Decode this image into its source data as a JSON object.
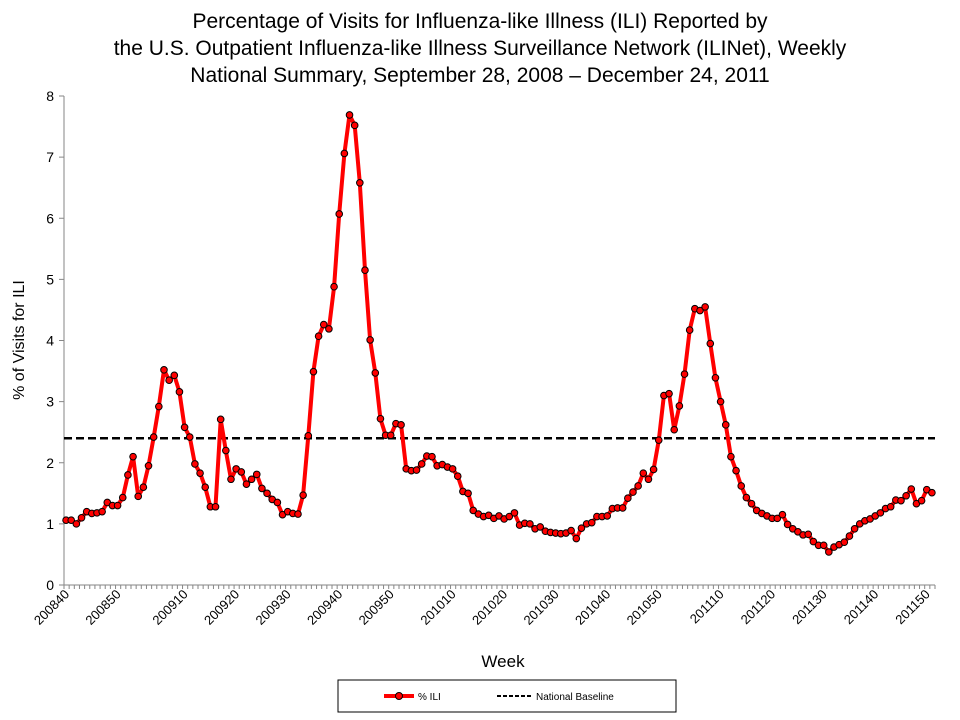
{
  "chart_data": {
    "type": "line",
    "title_lines": [
      "Percentage of Visits for Influenza-like Illness (ILI) Reported by",
      "the U.S. Outpatient Influenza-like Illness Surveillance Network (ILINet), Weekly",
      "National Summary, September 28, 2008 – December 24, 2011"
    ],
    "xlabel": "Week",
    "ylabel": "% of Visits for ILI",
    "ylim": [
      0,
      8
    ],
    "yticks": [
      0,
      1,
      2,
      3,
      4,
      5,
      6,
      7,
      8
    ],
    "grid": false,
    "legend_position": "bottom",
    "x_tick_labels": [
      "200840",
      "200850",
      "200910",
      "200920",
      "200930",
      "200940",
      "200950",
      "201010",
      "201020",
      "201030",
      "201040",
      "201050",
      "201110",
      "201120",
      "201130",
      "201140",
      "201150"
    ],
    "series": [
      {
        "name": "% ILI",
        "color": "#ff0000",
        "marker": "circle",
        "values": [
          1.06,
          1.06,
          1.0,
          1.1,
          1.2,
          1.17,
          1.18,
          1.2,
          1.35,
          1.3,
          1.3,
          1.43,
          1.8,
          2.1,
          1.45,
          1.6,
          1.95,
          2.42,
          2.92,
          3.52,
          3.35,
          3.43,
          3.16,
          2.58,
          2.42,
          1.98,
          1.83,
          1.6,
          1.28,
          1.28,
          2.71,
          2.2,
          1.73,
          1.9,
          1.85,
          1.65,
          1.73,
          1.81,
          1.58,
          1.5,
          1.4,
          1.35,
          1.15,
          1.2,
          1.17,
          1.16,
          1.47,
          2.44,
          3.49,
          4.07,
          4.26,
          4.19,
          4.88,
          6.07,
          7.06,
          7.69,
          7.52,
          6.58,
          5.15,
          4.01,
          3.47,
          2.72,
          2.45,
          2.45,
          2.64,
          2.62,
          1.9,
          1.87,
          1.88,
          1.98,
          2.11,
          2.1,
          1.95,
          1.97,
          1.93,
          1.9,
          1.78,
          1.53,
          1.5,
          1.22,
          1.16,
          1.12,
          1.14,
          1.09,
          1.13,
          1.08,
          1.12,
          1.18,
          0.98,
          1.01,
          1.0,
          0.92,
          0.95,
          0.88,
          0.86,
          0.85,
          0.84,
          0.85,
          0.89,
          0.76,
          0.93,
          1.0,
          1.02,
          1.12,
          1.12,
          1.13,
          1.25,
          1.26,
          1.26,
          1.42,
          1.52,
          1.62,
          1.83,
          1.73,
          1.89,
          2.37,
          3.1,
          3.13,
          2.54,
          2.93,
          3.45,
          4.17,
          4.52,
          4.49,
          4.55,
          3.95,
          3.39,
          3.0,
          2.62,
          2.1,
          1.87,
          1.62,
          1.43,
          1.33,
          1.22,
          1.17,
          1.13,
          1.09,
          1.09,
          1.15,
          0.99,
          0.92,
          0.87,
          0.82,
          0.83,
          0.71,
          0.65,
          0.65,
          0.54,
          0.62,
          0.66,
          0.7,
          0.8,
          0.92,
          1.0,
          1.05,
          1.08,
          1.13,
          1.18,
          1.25,
          1.28,
          1.39,
          1.38,
          1.46,
          1.57,
          1.33,
          1.38,
          1.56,
          1.51
        ]
      },
      {
        "name": "National Baseline",
        "color": "#000000",
        "style": "dashed",
        "value": 2.4
      }
    ]
  }
}
